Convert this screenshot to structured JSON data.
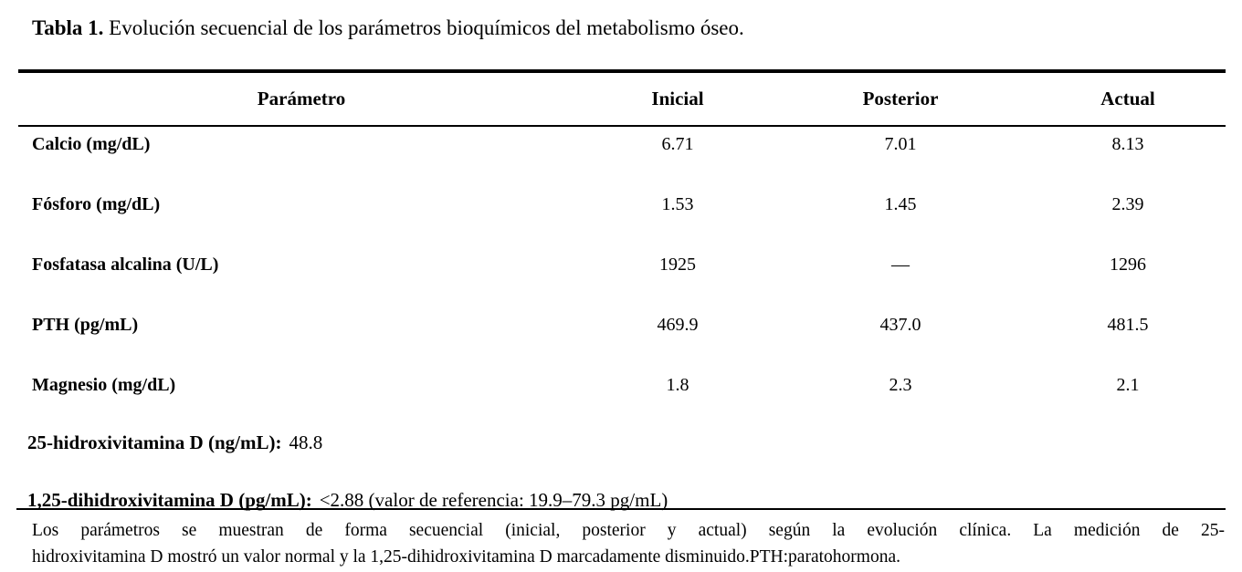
{
  "title": {
    "label": "Tabla 1.",
    "text": " Evolución secuencial de los parámetros bioquímicos del metabolismo óseo."
  },
  "table": {
    "headers": {
      "parameter": "Parámetro",
      "inicial": "Inicial",
      "posterior": "Posterior",
      "actual": "Actual"
    },
    "rows": [
      {
        "parameter": "Calcio (mg/dL)",
        "inicial": "6.71",
        "posterior": "7.01",
        "actual": "8.13"
      },
      {
        "parameter": "Fósforo (mg/dL)",
        "inicial": "1.53",
        "posterior": "1.45",
        "actual": "2.39"
      },
      {
        "parameter": "Fosfatasa alcalina (U/L)",
        "inicial": "1925",
        "posterior": "—",
        "actual": "1296"
      },
      {
        "parameter": "PTH (pg/mL)",
        "inicial": "469.9",
        "posterior": "437.0",
        "actual": "481.5"
      },
      {
        "parameter": "Magnesio (mg/dL)",
        "inicial": "1.8",
        "posterior": "2.3",
        "actual": "2.1"
      }
    ],
    "extra_rows": [
      {
        "label": "25-hidroxivitamina D (ng/mL):",
        "value": "48.8"
      },
      {
        "label": "1,25-dihidroxivitamina D (pg/mL):",
        "value": "<2.88 (valor de referencia: 19.9–79.3 pg/mL)"
      }
    ]
  },
  "footnote": {
    "line1": "Los parámetros se muestran de forma secuencial (inicial, posterior y actual) según la evolución clínica. La medición de 25-",
    "line2": "hidroxivitamina D mostró un valor normal y la 1,25-dihidroxivitamina D marcadamente disminuido.PTH:paratohormona."
  }
}
